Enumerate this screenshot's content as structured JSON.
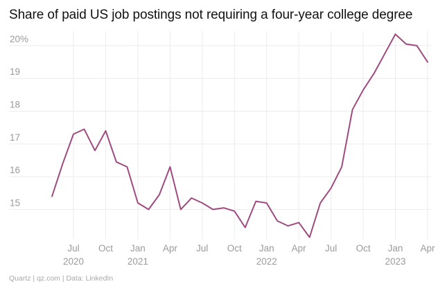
{
  "title": "Share of paid US job postings not requiring a four-year college degree",
  "source": "Quartz | qz.com | Data: LinkedIn",
  "colors": {
    "line": "#9e4a7f",
    "grid": "#ebebeb",
    "text": "#111111",
    "tick": "#9a9a9a"
  },
  "chart_data": {
    "type": "line",
    "title": "Share of paid US job postings not requiring a four-year college degree",
    "xlabel": "",
    "ylabel": "",
    "ylim": [
      14.1,
      20.4
    ],
    "yticks": [
      15,
      16,
      17,
      18,
      19,
      20
    ],
    "ytick_labels": [
      "15",
      "16",
      "17",
      "18",
      "19",
      "20%"
    ],
    "grid": true,
    "xticks": [
      {
        "date": "2020-07",
        "month": "Jul",
        "year": "2020"
      },
      {
        "date": "2020-10",
        "month": "Oct",
        "year": ""
      },
      {
        "date": "2021-01",
        "month": "Jan",
        "year": "2021"
      },
      {
        "date": "2021-04",
        "month": "Apr",
        "year": ""
      },
      {
        "date": "2021-07",
        "month": "Jul",
        "year": ""
      },
      {
        "date": "2021-10",
        "month": "Oct",
        "year": ""
      },
      {
        "date": "2022-01",
        "month": "Jan",
        "year": "2022"
      },
      {
        "date": "2022-04",
        "month": "Apr",
        "year": ""
      },
      {
        "date": "2022-07",
        "month": "Jul",
        "year": ""
      },
      {
        "date": "2022-10",
        "month": "Oct",
        "year": ""
      },
      {
        "date": "2023-01",
        "month": "Jan",
        "year": "2023"
      },
      {
        "date": "2023-04",
        "month": "Apr",
        "year": ""
      }
    ],
    "x": [
      "2020-05",
      "2020-06",
      "2020-07",
      "2020-08",
      "2020-09",
      "2020-10",
      "2020-11",
      "2020-12",
      "2021-01",
      "2021-02",
      "2021-03",
      "2021-04",
      "2021-05",
      "2021-06",
      "2021-07",
      "2021-08",
      "2021-09",
      "2021-10",
      "2021-11",
      "2021-12",
      "2022-01",
      "2022-02",
      "2022-03",
      "2022-04",
      "2022-05",
      "2022-06",
      "2022-07",
      "2022-08",
      "2022-09",
      "2022-10",
      "2022-11",
      "2022-12",
      "2023-01",
      "2023-02",
      "2023-03",
      "2023-04"
    ],
    "series": [
      {
        "values": [
          15.4,
          16.4,
          17.3,
          17.45,
          16.8,
          17.4,
          16.45,
          16.3,
          15.2,
          15.0,
          15.45,
          16.3,
          15.0,
          15.35,
          15.2,
          15.0,
          15.05,
          14.95,
          14.45,
          15.25,
          15.2,
          14.65,
          14.5,
          14.6,
          14.15,
          15.2,
          15.65,
          16.3,
          18.05,
          18.65,
          19.15,
          19.75,
          20.35,
          20.05,
          20.0,
          19.5
        ]
      }
    ]
  }
}
